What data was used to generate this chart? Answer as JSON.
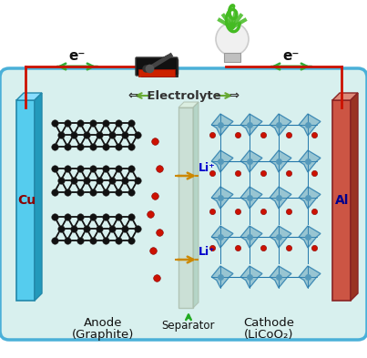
{
  "bg_outer": "#ffffff",
  "bg_box": "#d8f0ee",
  "box_border": "#4ab0d8",
  "cu_color_front": "#55ccee",
  "cu_color_top": "#88ddff",
  "cu_color_side": "#2299bb",
  "al_color_front": "#cc5544",
  "al_color_top": "#dd8877",
  "al_color_side": "#993322",
  "separator_color": "#c8dcd4",
  "graphite_node_color": "#111111",
  "li_ion_color": "#cc1100",
  "electrolyte_arrow_color": "#66aa33",
  "li_arrow_color": "#cc8800",
  "wire_color": "#cc1100",
  "electron_arrow_color": "#33aa33",
  "cathode_face_color": "#88bbcc",
  "cathode_edge_color": "#2277aa",
  "cathode_dot_color": "#5599bb",
  "text_anode": "Anode",
  "text_anode2": "(Graphite)",
  "text_cathode": "Cathode",
  "text_cathode2": "(LiCoO₂)",
  "text_separator": "Separator",
  "text_electrolyte": "⇐  Electrolyte  ⇒",
  "text_li1": "Li⁺",
  "text_li2": "Li⁺",
  "text_cu": "Cu",
  "text_al": "Al",
  "text_e1": "e⁻",
  "text_e2": "e⁻"
}
